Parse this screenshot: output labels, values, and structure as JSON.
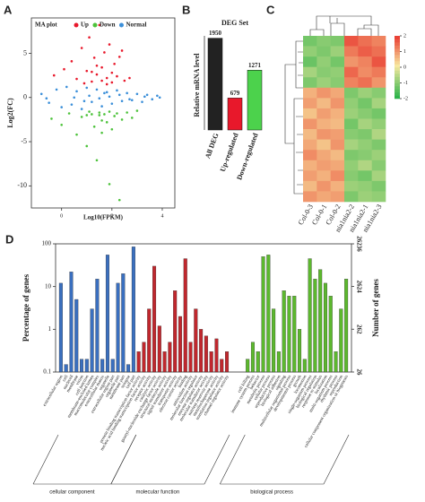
{
  "chart_data": [
    {
      "type": "scatter",
      "panel_label": "A",
      "title": "MA plot",
      "xlabel": "Log10(FPKM)",
      "ylabel": "Log2(FC)",
      "xlim": [
        -1.2,
        4.5
      ],
      "ylim": [
        -12.5,
        9
      ],
      "xticks": [
        0,
        2,
        4
      ],
      "yticks": [
        -10,
        -5,
        0,
        5
      ],
      "legend": "top-right",
      "series": [
        {
          "name": "Up",
          "color": "#e8182b",
          "x": [
            -0.3,
            0.1,
            0.4,
            0.6,
            0.8,
            1.0,
            1.1,
            1.2,
            1.3,
            1.4,
            1.5,
            1.6,
            1.7,
            1.8,
            1.9,
            2.0,
            2.1,
            2.2,
            2.3,
            2.5,
            2.7,
            0.9,
            1.2,
            1.6,
            2.0,
            1.8,
            1.4,
            2.4
          ],
          "y": [
            2.5,
            3.2,
            4.1,
            2.1,
            5.6,
            3.0,
            6.8,
            1.8,
            4.5,
            2.6,
            8.2,
            3.4,
            5.1,
            2.2,
            6.0,
            1.7,
            3.8,
            2.4,
            4.6,
            1.9,
            2.2,
            1.6,
            2.9,
            1.9,
            2.8,
            1.5,
            3.6,
            5.3
          ]
        },
        {
          "name": "Down",
          "color": "#4cc23a",
          "x": [
            -0.4,
            0.0,
            0.3,
            0.6,
            0.8,
            1.0,
            1.1,
            1.3,
            1.4,
            1.5,
            1.6,
            1.7,
            1.8,
            1.9,
            2.0,
            2.1,
            2.2,
            2.4,
            2.6,
            2.8,
            3.0,
            1.2,
            1.6,
            1.9,
            2.3,
            1.0,
            1.5
          ],
          "y": [
            -2.4,
            -3.1,
            -1.8,
            -4.2,
            -2.2,
            -5.5,
            -1.6,
            -3.3,
            -7.1,
            -2.0,
            -4.0,
            -1.9,
            -2.8,
            -1.6,
            -3.6,
            -2.1,
            -1.8,
            -2.5,
            -1.7,
            -2.3,
            -1.5,
            -1.9,
            -2.6,
            -9.8,
            -11.6,
            -2.0,
            -1.7
          ]
        },
        {
          "name": "Normal",
          "color": "#3b8fd9",
          "x": [
            -0.8,
            -0.5,
            -0.2,
            0.0,
            0.2,
            0.4,
            0.6,
            0.8,
            1.0,
            1.2,
            1.4,
            1.6,
            1.8,
            2.0,
            2.2,
            2.4,
            2.6,
            2.8,
            3.0,
            3.2,
            3.4,
            3.6,
            3.8,
            0.5,
            1.1,
            1.5,
            1.9,
            2.3,
            2.7,
            0.9,
            1.7,
            3.3,
            -0.6,
            3.9
          ],
          "y": [
            0.4,
            -0.6,
            0.9,
            -1.1,
            1.2,
            -0.8,
            0.7,
            -1.3,
            1.1,
            -0.5,
            0.9,
            -1.0,
            0.6,
            -0.7,
            0.8,
            -0.4,
            0.5,
            -0.3,
            0.4,
            -0.5,
            0.3,
            -0.2,
            0.2,
            0.0,
            0.2,
            -0.1,
            0.1,
            0.3,
            -0.2,
            -0.4,
            0.5,
            0.1,
            -0.1,
            0.0
          ]
        }
      ]
    },
    {
      "type": "bar",
      "panel_label": "B",
      "title": "DEG Set",
      "ylabel": "Relative mRNA level",
      "categories": [
        "All DEG",
        "Up-regulated",
        "Down-regulated"
      ],
      "values": [
        1950,
        679,
        1271
      ],
      "colors": [
        "#222222",
        "#e8182b",
        "#4cd24c"
      ],
      "ylim": [
        0,
        2000
      ]
    },
    {
      "type": "heatmap",
      "panel_label": "C",
      "columns": [
        "Col-0-3",
        "Col-0-1",
        "Col-0-2",
        "nia1nia2-2",
        "nia1nia2-1",
        "nia1nia2-3"
      ],
      "zlim": [
        -2,
        2
      ],
      "colorbar_ticks": [
        -2,
        -1,
        0,
        1,
        2
      ],
      "values": [
        [
          -1.3,
          -1.1,
          -1.2,
          1.6,
          1.3,
          1.1
        ],
        [
          -1.0,
          -1.2,
          -0.9,
          1.2,
          1.5,
          1.3
        ],
        [
          -1.4,
          -1.0,
          -1.3,
          0.9,
          1.1,
          1.6
        ],
        [
          -0.8,
          -1.1,
          -1.0,
          1.4,
          1.0,
          1.2
        ],
        [
          -1.2,
          -0.9,
          -1.1,
          1.1,
          1.3,
          0.9
        ],
        [
          0.6,
          0.9,
          0.7,
          -1.2,
          -0.9,
          -1.1
        ],
        [
          0.8,
          0.5,
          0.9,
          -1.0,
          -1.3,
          -0.8
        ],
        [
          0.4,
          0.8,
          0.6,
          -0.9,
          -1.1,
          -1.3
        ],
        [
          0.9,
          0.6,
          0.5,
          -1.3,
          -0.8,
          -1.0
        ],
        [
          0.5,
          0.9,
          0.8,
          -1.1,
          -1.2,
          -0.7
        ],
        [
          0.7,
          0.4,
          0.9,
          -0.8,
          -1.0,
          -1.2
        ],
        [
          1.0,
          0.7,
          0.5,
          -1.2,
          -1.1,
          -0.9
        ],
        [
          0.6,
          0.8,
          0.7,
          -1.0,
          -0.7,
          -1.1
        ],
        [
          0.8,
          0.6,
          1.0,
          -1.1,
          -1.3,
          -0.8
        ],
        [
          0.5,
          0.9,
          0.6,
          -0.9,
          -1.0,
          -1.2
        ],
        [
          0.9,
          0.7,
          0.8,
          -1.2,
          -0.9,
          -1.0
        ]
      ]
    },
    {
      "type": "bar",
      "panel_label": "D",
      "log_scale": true,
      "ylabel": "Percentage of genes",
      "y2label": "Number of genes",
      "ylim": [
        0.1,
        100
      ],
      "yticks": [
        0.1,
        1,
        10,
        100
      ],
      "y2lim": [
        26,
        26236
      ],
      "y2ticks": [
        26,
        262,
        2624,
        26236
      ],
      "groups": [
        {
          "name": "cellular component",
          "color": "#3a6fbf",
          "categories": [
            "extracellular region",
            "cell",
            "nucleoid",
            "membrane",
            "virion",
            "cell junction",
            "membrane-enclosed lumen",
            "macromolecular complex",
            "extracellular matrix",
            "organelle",
            "extracellular region part",
            "organelle part",
            "membrane part",
            "synapse",
            "cell part"
          ],
          "values": [
            12,
            0.15,
            22,
            5,
            0.2,
            0.2,
            3,
            15,
            0.2,
            55,
            0.2,
            12,
            20,
            0.15,
            85
          ]
        },
        {
          "name": "molecular function",
          "color": "#c0272d",
          "categories": [
            "protein binding transcription factor activity",
            "nucleic acid binding transcription factor activity",
            "receptor activity",
            "catalytic activity",
            "guanyl-nucleotide exchange factor activity",
            "structural molecule activity",
            "signal transducer activity",
            "transporter activity",
            "electron carrier activity",
            "binding",
            "antioxidant activity",
            "molecular function regulator",
            "enzyme regulator activity",
            "molecular transducer activity",
            "nutrient reservoir activity",
            "metallochaperone activity",
            "translation regulator activity",
            "channel regulator activity"
          ],
          "values": [
            0.3,
            0.5,
            3,
            30,
            1.2,
            0.3,
            0.5,
            8,
            2,
            45,
            0.5,
            3,
            1,
            0.7,
            0.3,
            0.6,
            0.2,
            0.3
          ]
        },
        {
          "name": "biological process",
          "color": "#5cb82e",
          "categories": [
            "cell killing",
            "immune system process",
            "behavior",
            "metabolic process",
            "cellular process",
            "reproductive process",
            "biological adhesion",
            "signaling",
            "multicellular organismal process",
            "developmental process",
            "growth",
            "locomotion",
            "single-organism process",
            "biological regulation",
            "response to stimulus",
            "localization",
            "multi-organism process",
            "rhythmic process",
            "reproduction",
            "cellular component organization or biogenesis"
          ],
          "values": [
            0.2,
            0.5,
            0.3,
            50,
            55,
            3,
            0.3,
            8,
            6,
            6,
            1,
            0.2,
            45,
            15,
            25,
            12,
            6,
            0.3,
            3,
            15
          ]
        }
      ]
    }
  ]
}
